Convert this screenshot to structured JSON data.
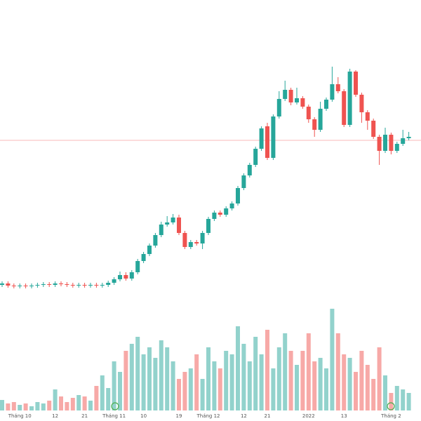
{
  "chart_data": {
    "type": "candlestick",
    "categories": [
      null,
      null,
      null,
      "Tháng 10",
      null,
      null,
      null,
      null,
      null,
      "12",
      null,
      null,
      null,
      null,
      "21",
      null,
      null,
      null,
      null,
      "Tháng 11",
      null,
      null,
      null,
      null,
      "10",
      null,
      null,
      null,
      null,
      null,
      "19",
      null,
      null,
      null,
      null,
      "Tháng 12",
      null,
      null,
      null,
      null,
      null,
      "12",
      null,
      null,
      null,
      "21",
      null,
      null,
      null,
      null,
      null,
      null,
      "2022",
      null,
      null,
      null,
      null,
      null,
      "13",
      null,
      null,
      null,
      null,
      null,
      null,
      null,
      "Tháng 2",
      null,
      null,
      null
    ],
    "open": [
      194,
      196,
      193,
      192,
      193,
      192,
      193,
      194,
      195,
      194,
      196,
      195,
      194,
      193,
      194,
      193,
      194,
      193,
      194,
      197,
      202,
      208,
      203,
      212,
      228,
      238,
      250,
      265,
      280,
      283,
      290,
      268,
      248,
      255,
      253,
      268,
      288,
      297,
      294,
      303,
      310,
      332,
      350,
      365,
      388,
      420,
      375,
      434,
      459,
      472,
      454,
      460,
      448,
      430,
      415,
      445,
      458,
      480,
      470,
      422,
      498,
      465,
      440,
      428,
      405,
      385,
      408,
      385,
      395,
      403
    ],
    "high": [
      199,
      199,
      196,
      196,
      196,
      196,
      197,
      198,
      198,
      199,
      199,
      198,
      197,
      197,
      197,
      197,
      197,
      197,
      200,
      205,
      213,
      212,
      215,
      231,
      241,
      253,
      268,
      284,
      292,
      295,
      294,
      271,
      258,
      258,
      271,
      291,
      300,
      300,
      306,
      313,
      335,
      353,
      368,
      391,
      420,
      425,
      437,
      470,
      485,
      475,
      475,
      463,
      451,
      433,
      455,
      461,
      505,
      490,
      473,
      502,
      500,
      468,
      443,
      431,
      408,
      418,
      411,
      398,
      415,
      412
    ],
    "low": [
      191,
      190,
      189,
      189,
      189,
      189,
      190,
      191,
      191,
      191,
      192,
      191,
      190,
      190,
      190,
      190,
      190,
      190,
      191,
      194,
      199,
      200,
      200,
      209,
      225,
      235,
      247,
      262,
      277,
      280,
      265,
      245,
      245,
      250,
      245,
      265,
      285,
      291,
      291,
      300,
      307,
      329,
      347,
      362,
      385,
      372,
      372,
      431,
      456,
      450,
      451,
      445,
      425,
      405,
      412,
      442,
      455,
      467,
      419,
      419,
      462,
      425,
      415,
      402,
      365,
      382,
      380,
      382,
      392,
      400
    ],
    "close": [
      196,
      193,
      192,
      193,
      192,
      193,
      194,
      195,
      194,
      196,
      195,
      194,
      193,
      194,
      193,
      194,
      193,
      194,
      197,
      202,
      208,
      203,
      212,
      228,
      238,
      250,
      265,
      280,
      283,
      290,
      268,
      248,
      255,
      253,
      268,
      288,
      297,
      294,
      303,
      310,
      332,
      350,
      365,
      388,
      417,
      375,
      434,
      459,
      472,
      454,
      460,
      448,
      430,
      415,
      445,
      458,
      480,
      470,
      422,
      498,
      465,
      440,
      428,
      405,
      385,
      408,
      385,
      395,
      403,
      405
    ],
    "volume": [
      15,
      10,
      12,
      8,
      10,
      6,
      12,
      10,
      14,
      30,
      20,
      12,
      18,
      22,
      20,
      14,
      35,
      50,
      32,
      70,
      55,
      85,
      95,
      105,
      80,
      90,
      75,
      100,
      90,
      70,
      45,
      55,
      60,
      80,
      45,
      90,
      70,
      60,
      85,
      80,
      120,
      95,
      70,
      105,
      80,
      115,
      60,
      90,
      110,
      85,
      65,
      85,
      110,
      70,
      75,
      60,
      145,
      110,
      80,
      75,
      55,
      85,
      65,
      45,
      90,
      50,
      25,
      35,
      30,
      25
    ],
    "ylim": [
      0,
      600
    ],
    "volume_lim": [
      0,
      585
    ],
    "price_line": 400,
    "up_color": "#26a69a",
    "down_color": "#ef5350"
  }
}
